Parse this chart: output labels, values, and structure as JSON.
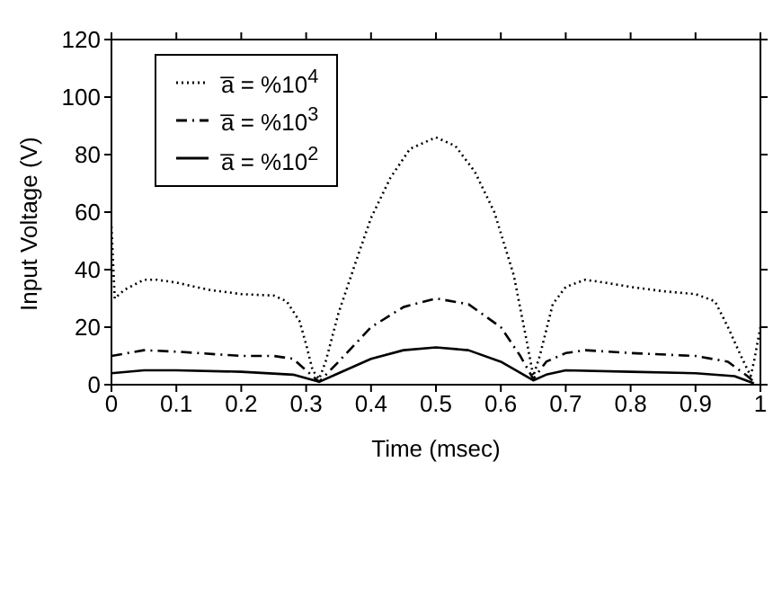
{
  "chart_data": {
    "type": "line",
    "xlabel": "Time (msec)",
    "ylabel": "Input Voltage (V)",
    "xlim": [
      0,
      1
    ],
    "ylim": [
      0,
      120
    ],
    "xticks": [
      0,
      0.1,
      0.2,
      0.3,
      0.4,
      0.5,
      0.6,
      0.7,
      0.8,
      0.9,
      1
    ],
    "yticks": [
      0,
      20,
      40,
      60,
      80,
      100,
      120
    ],
    "legend": "top left",
    "marker": "none",
    "series": [
      {
        "name": "a̅ = %10$^{4}$",
        "color": "#000000",
        "line_style": "dotted",
        "x": [
          0,
          0.005,
          0.02,
          0.05,
          0.07,
          0.1,
          0.15,
          0.2,
          0.25,
          0.27,
          0.29,
          0.3,
          0.31,
          0.32,
          0.33,
          0.35,
          0.38,
          0.4,
          0.43,
          0.46,
          0.5,
          0.53,
          0.56,
          0.59,
          0.62,
          0.64,
          0.65,
          0.66,
          0.68,
          0.7,
          0.73,
          0.76,
          0.8,
          0.85,
          0.9,
          0.93,
          0.95,
          0.97,
          0.985,
          0.99,
          1
        ],
        "values": [
          55,
          30,
          33,
          36.5,
          36.5,
          35.5,
          33,
          31.5,
          31,
          29,
          22,
          14,
          5,
          2,
          8,
          25,
          45,
          58,
          72,
          82,
          86,
          83,
          74,
          60,
          38,
          15,
          3,
          10,
          28,
          34,
          36.5,
          35.5,
          34,
          32.5,
          31.5,
          29,
          20,
          10,
          3,
          8,
          20
        ]
      },
      {
        "name": "a̅ = %10$^{3}$",
        "color": "#000000",
        "line_style": "dashed",
        "x": [
          0,
          0.05,
          0.1,
          0.2,
          0.25,
          0.28,
          0.3,
          0.32,
          0.35,
          0.4,
          0.45,
          0.5,
          0.55,
          0.6,
          0.63,
          0.65,
          0.67,
          0.7,
          0.73,
          0.8,
          0.9,
          0.95,
          0.98,
          0.99
        ],
        "values": [
          10,
          12,
          11.5,
          10,
          10,
          9,
          5,
          1,
          8,
          20,
          27,
          30,
          28,
          20,
          10,
          2,
          8,
          11,
          12,
          11,
          10,
          8,
          3,
          1
        ]
      },
      {
        "name": "a̅ = %10$^{2}$",
        "color": "#000000",
        "line_style": "solid",
        "x": [
          0,
          0.05,
          0.1,
          0.2,
          0.28,
          0.32,
          0.35,
          0.4,
          0.45,
          0.5,
          0.55,
          0.6,
          0.65,
          0.67,
          0.7,
          0.8,
          0.9,
          0.96,
          0.99
        ],
        "values": [
          4,
          5,
          5,
          4.5,
          3.5,
          1,
          4,
          9,
          12,
          13,
          12,
          8,
          1.5,
          3.5,
          5,
          4.5,
          4,
          3,
          0.5
        ]
      }
    ]
  }
}
